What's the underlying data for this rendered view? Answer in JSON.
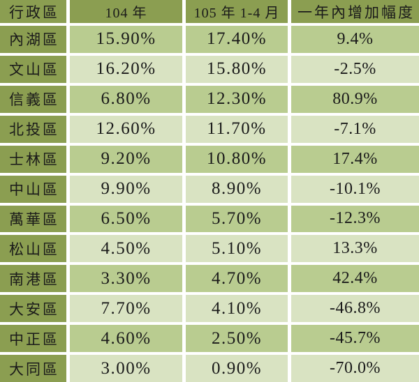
{
  "colors": {
    "header_bg": "#8b9e51",
    "row_dark_bg": "#b9cc90",
    "row_light_bg": "#d9e3c2",
    "grid_line": "#ffffff",
    "text": "#1a1a1a"
  },
  "chart_data": {
    "type": "table",
    "columns": [
      "行政區",
      "104 年",
      "105 年 1-4 月",
      "一年內增加幅度"
    ],
    "rows": [
      [
        "內湖區",
        "15.90%",
        "17.40%",
        "9.4%"
      ],
      [
        "文山區",
        "16.20%",
        "15.80%",
        "-2.5%"
      ],
      [
        "信義區",
        "6.80%",
        "12.30%",
        "80.9%"
      ],
      [
        "北投區",
        "12.60%",
        "11.70%",
        "-7.1%"
      ],
      [
        "士林區",
        "9.20%",
        "10.80%",
        "17.4%"
      ],
      [
        "中山區",
        "9.90%",
        "8.90%",
        "-10.1%"
      ],
      [
        "萬華區",
        "6.50%",
        "5.70%",
        "-12.3%"
      ],
      [
        "松山區",
        "4.50%",
        "5.10%",
        "13.3%"
      ],
      [
        "南港區",
        "3.30%",
        "4.70%",
        "42.4%"
      ],
      [
        "大安區",
        "7.70%",
        "4.10%",
        "-46.8%"
      ],
      [
        "中正區",
        "4.60%",
        "2.50%",
        "-45.7%"
      ],
      [
        "大同區",
        "3.00%",
        "0.90%",
        "-70.0%"
      ]
    ]
  }
}
